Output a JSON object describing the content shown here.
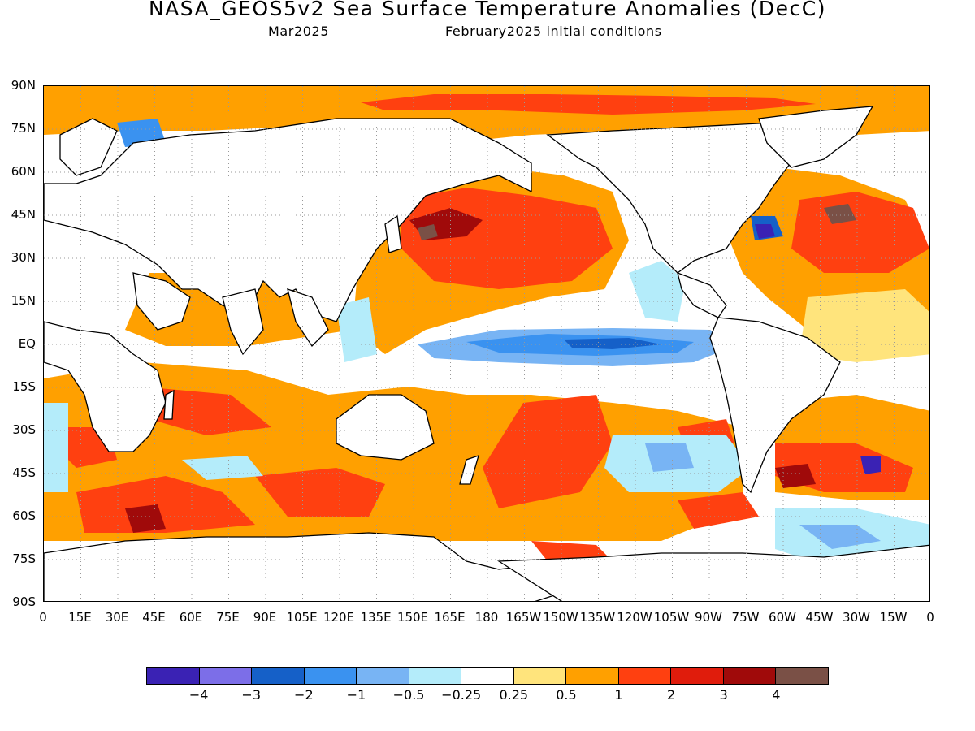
{
  "title": "NASA_GEOS5v2 Sea Surface Temperature Anomalies (DecC)",
  "subtitle_left": "Mar2025",
  "subtitle_right": "February2025 initial conditions",
  "lat_labels": [
    "90N",
    "75N",
    "60N",
    "45N",
    "30N",
    "15N",
    "EQ",
    "15S",
    "30S",
    "45S",
    "60S",
    "75S",
    "90S"
  ],
  "lon_labels": [
    "0",
    "15E",
    "30E",
    "45E",
    "60E",
    "75E",
    "90E",
    "105E",
    "120E",
    "135E",
    "150E",
    "165E",
    "180",
    "165W",
    "150W",
    "135W",
    "120W",
    "105W",
    "90W",
    "75W",
    "60W",
    "45W",
    "30W",
    "15W",
    "0"
  ],
  "colorbar": {
    "colors": [
      "#3a22b4",
      "#7c6ee8",
      "#1560c8",
      "#3a92f0",
      "#78b4f4",
      "#b4ecfa",
      "#ffffff",
      "#ffe47c",
      "#ffa000",
      "#ff4010",
      "#e01c0c",
      "#a00a0a",
      "#7a5046"
    ],
    "labels": [
      "−4",
      "−3",
      "−2",
      "−1",
      "−0.5",
      "−0.25",
      "0.25",
      "0.5",
      "1",
      "2",
      "3",
      "4"
    ]
  },
  "land_color": "#ffffff"
}
